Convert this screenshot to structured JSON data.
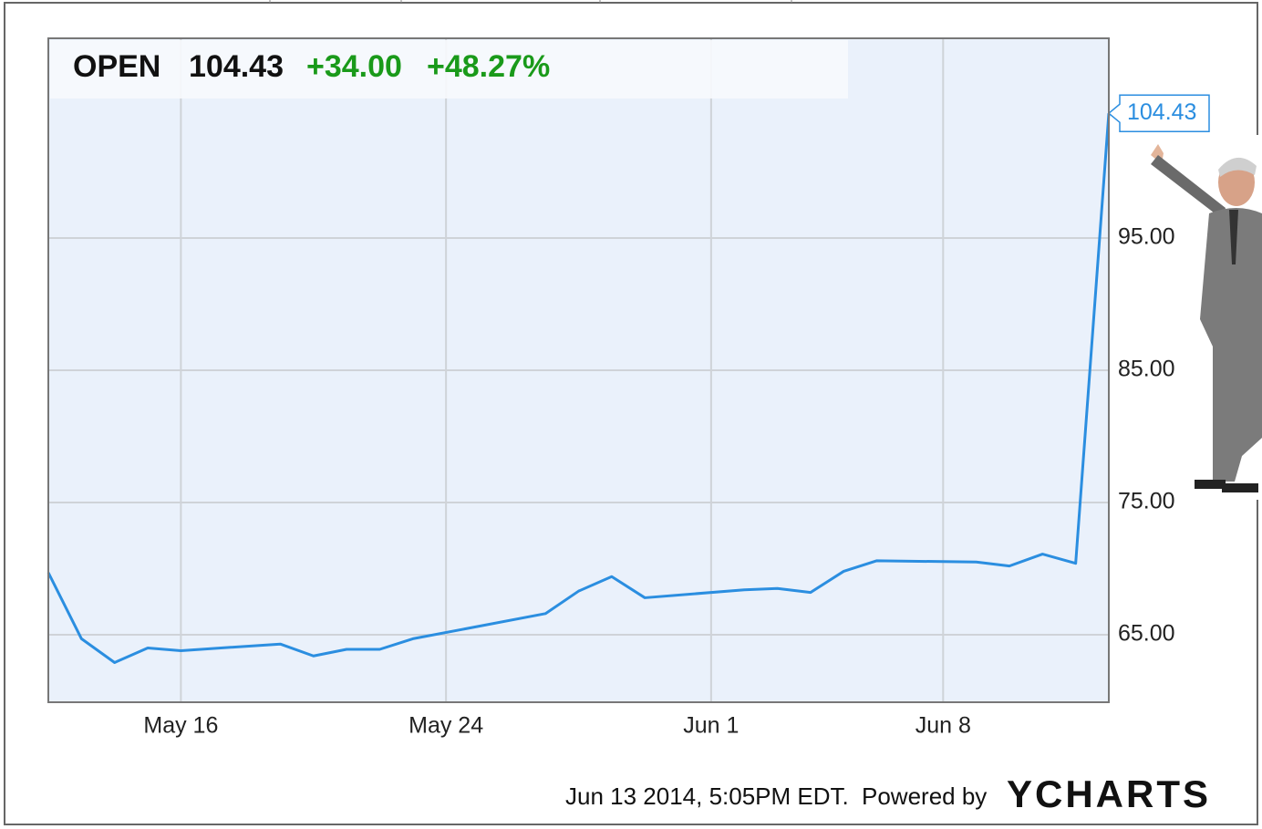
{
  "chart_data": {
    "type": "line",
    "header": {
      "symbol": "OPEN",
      "price": "104.43",
      "change": "+34.00",
      "change_pct": "+48.27%"
    },
    "x": [
      "May 12",
      "May 13",
      "May 14",
      "May 15",
      "May 16",
      "May 19",
      "May 20",
      "May 21",
      "May 22",
      "May 23",
      "May 27",
      "May 28",
      "May 29",
      "May 30",
      "Jun 2",
      "Jun 3",
      "Jun 4",
      "Jun 5",
      "Jun 6",
      "Jun 9",
      "Jun 10",
      "Jun 11",
      "Jun 12",
      "Jun 13"
    ],
    "series": [
      {
        "name": "OPEN",
        "color": "#2b8ee0",
        "values": [
          69.7,
          64.7,
          62.9,
          64.0,
          63.8,
          64.3,
          63.4,
          63.9,
          63.9,
          64.7,
          66.6,
          68.3,
          69.4,
          67.8,
          68.4,
          68.5,
          68.2,
          69.8,
          70.6,
          70.5,
          70.2,
          71.1,
          70.4,
          104.43
        ]
      }
    ],
    "xlim": [
      "May 12",
      "Jun 13"
    ],
    "xticks": [
      "May 16",
      "May 24",
      "Jun 1",
      "Jun 8"
    ],
    "ylim": [
      59.9,
      110.1
    ],
    "yticks": [
      {
        "value": 65,
        "label": "65.00"
      },
      {
        "value": 75,
        "label": "75.00"
      },
      {
        "value": 85,
        "label": "85.00"
      },
      {
        "value": 95,
        "label": "95.00"
      }
    ],
    "grid": true,
    "footer": {
      "timestamp": "Jun 13 2014, 5:05PM EDT.",
      "powered_by": "Powered by",
      "brand": "YCHARTS"
    }
  }
}
